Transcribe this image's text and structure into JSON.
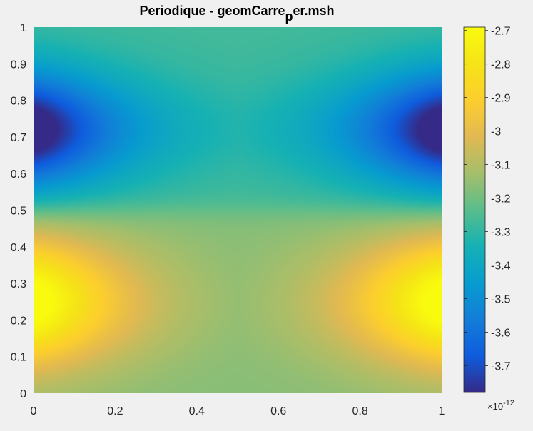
{
  "chart_data": {
    "type": "heatmap",
    "title": {
      "main": "Periodique - geomCarre",
      "subscript": "p",
      "suffix": "er.msh"
    },
    "xlabel": "",
    "ylabel": "",
    "xlim": [
      0,
      1
    ],
    "ylim": [
      0,
      1
    ],
    "x_ticks": [
      "0",
      "0.2",
      "0.4",
      "0.6",
      "0.8",
      "1"
    ],
    "y_ticks": [
      "0",
      "0.1",
      "0.2",
      "0.3",
      "0.4",
      "0.5",
      "0.6",
      "0.7",
      "0.8",
      "0.9",
      "1"
    ],
    "colormap": "parula",
    "colorbar": {
      "range": [
        -3.78,
        -2.69
      ],
      "ticks": [
        "-2.7",
        "-2.8",
        "-2.9",
        "-3",
        "-3.1",
        "-3.2",
        "-3.3",
        "-3.4",
        "-3.5",
        "-3.6",
        "-3.7"
      ],
      "exponent_base": "×10",
      "exponent_power": "-12"
    },
    "field": {
      "baseline": -3.22,
      "max_value": -2.69,
      "max_location": [
        0,
        0.25
      ],
      "min_value": -3.78,
      "min_location": [
        0,
        0.72
      ],
      "periodic_in_x": true
    }
  }
}
